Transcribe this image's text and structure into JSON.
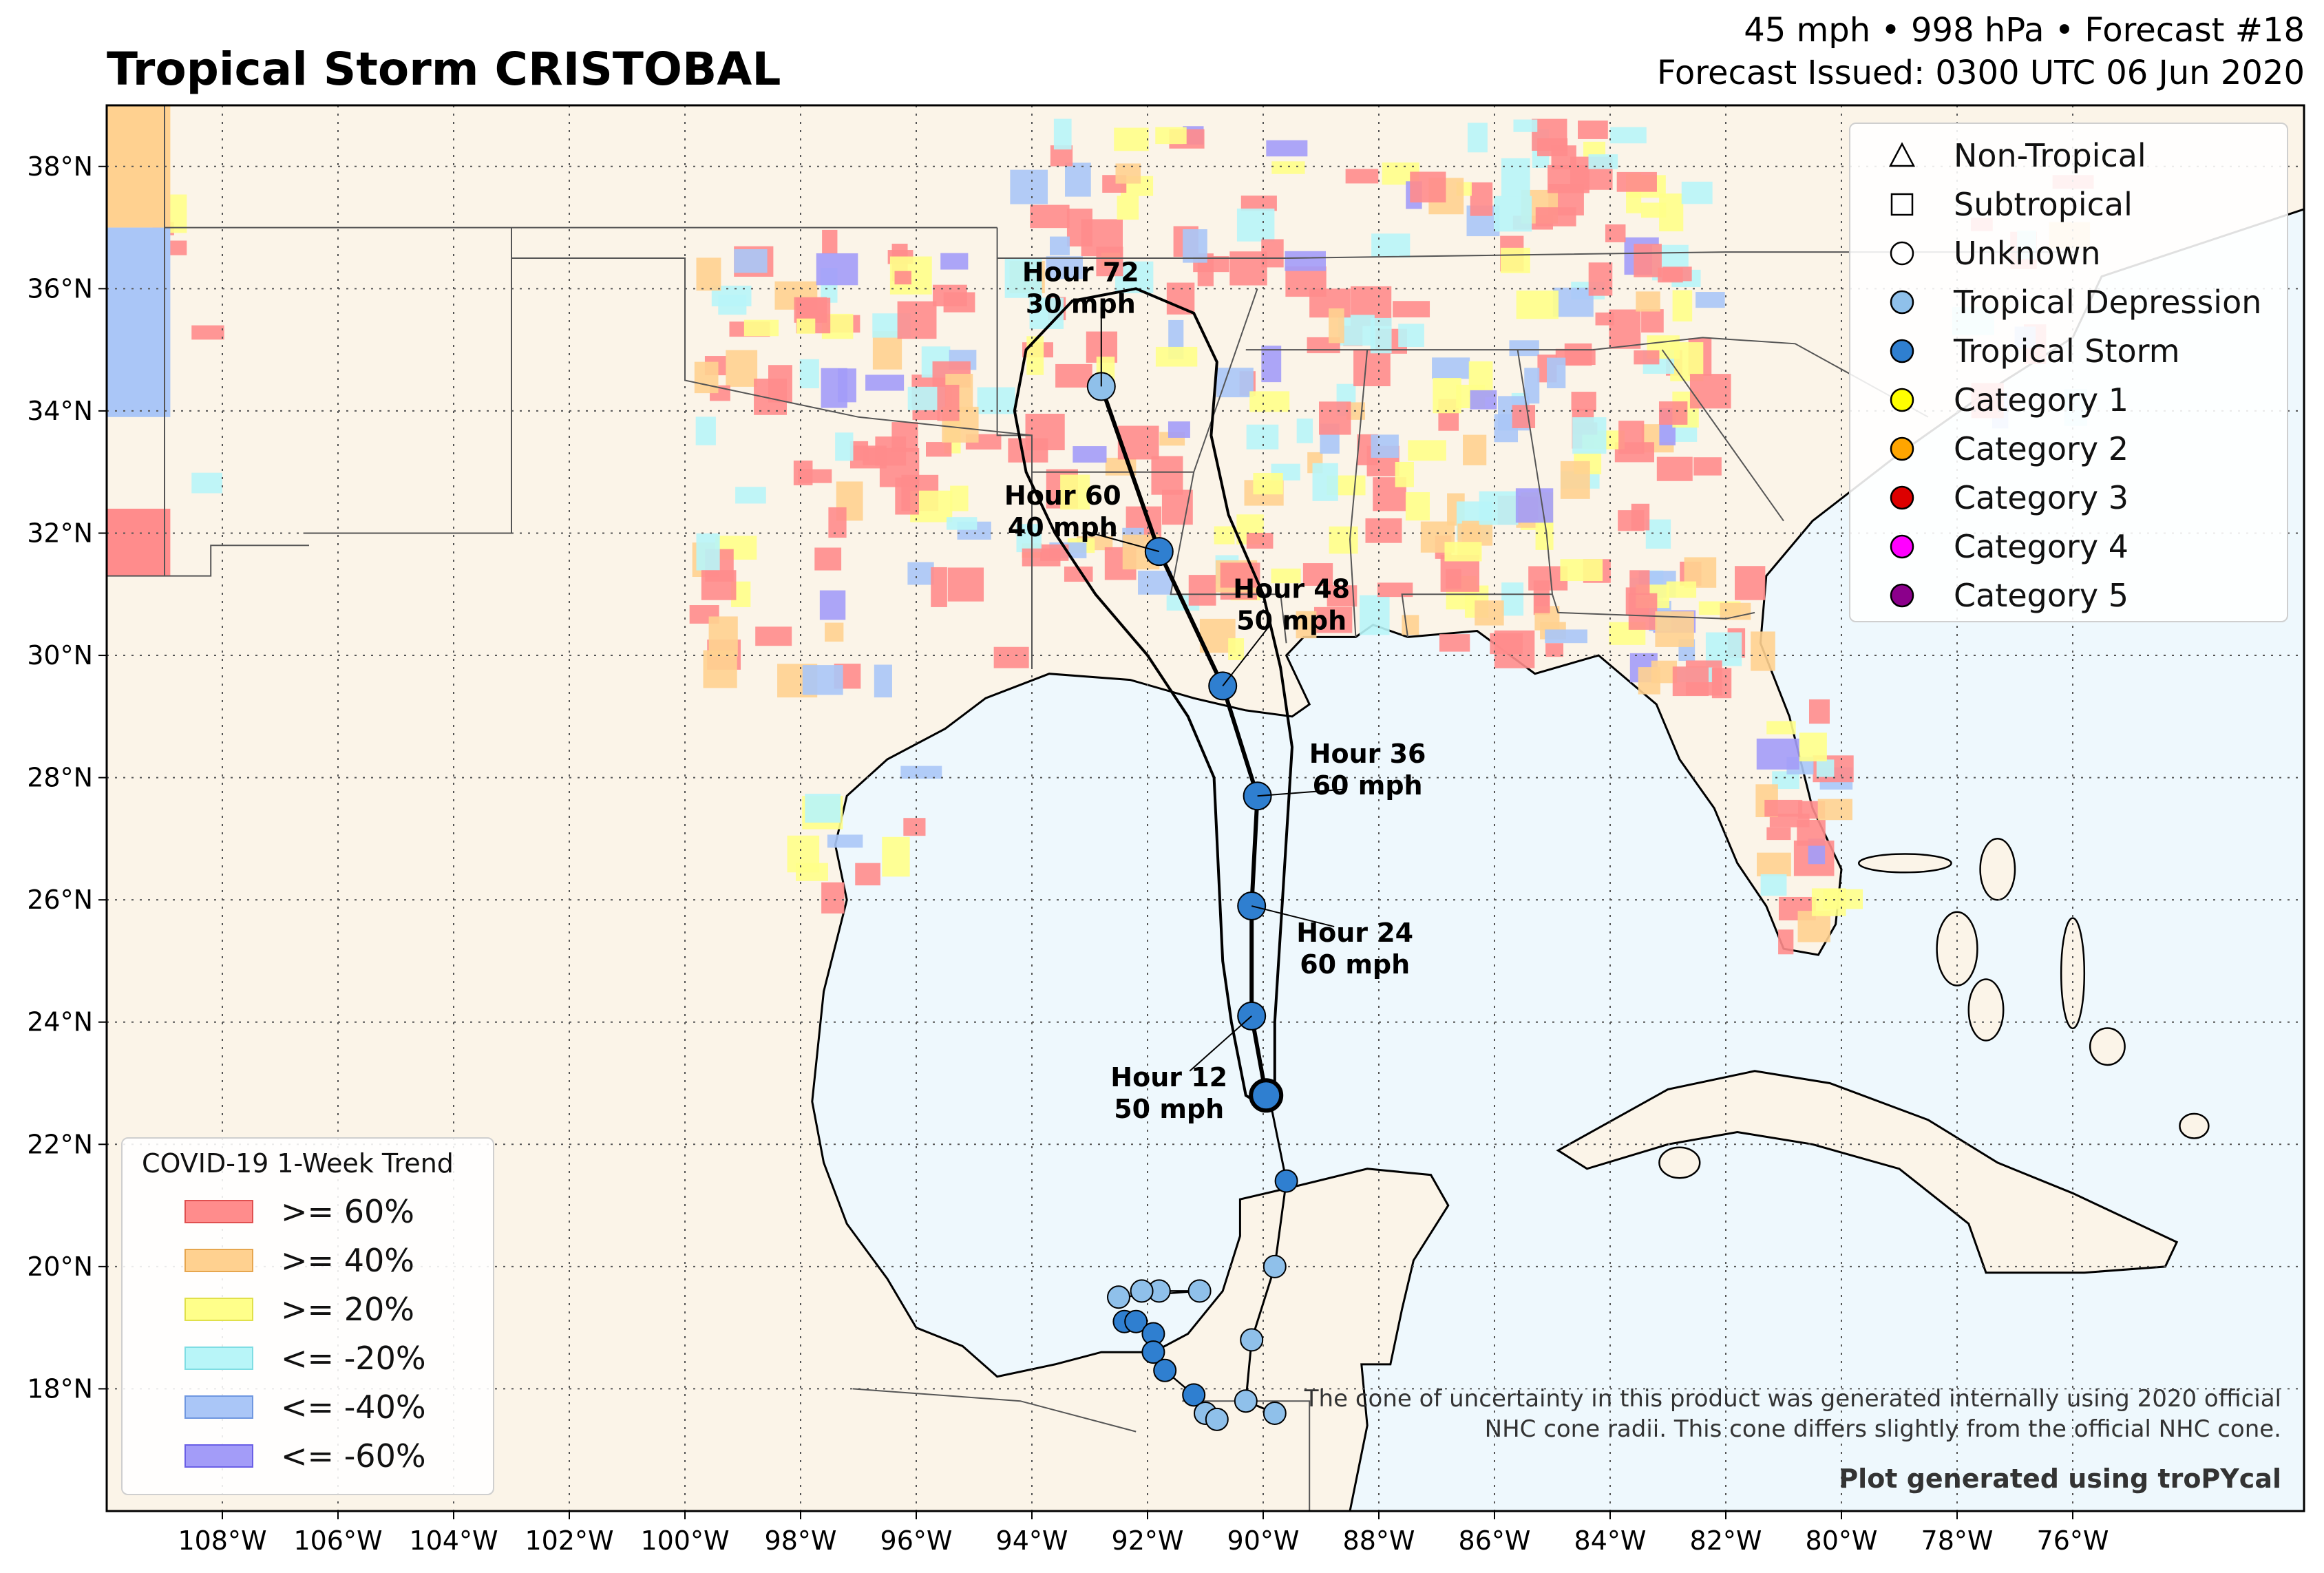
{
  "header": {
    "title": "Tropical Storm CRISTOBAL",
    "intensity_line": "45 mph • 998 hPa • Forecast #18",
    "issued_line": "Forecast Issued: 0300 UTC 06 Jun 2020"
  },
  "map": {
    "lon_range": [
      -110,
      -72
    ],
    "lat_range": [
      16,
      39
    ],
    "lon_ticks": [
      "108°W",
      "106°W",
      "104°W",
      "102°W",
      "100°W",
      "98°W",
      "96°W",
      "94°W",
      "92°W",
      "90°W",
      "88°W",
      "86°W",
      "84°W",
      "82°W",
      "80°W",
      "78°W",
      "76°W"
    ],
    "lat_ticks": [
      "18°N",
      "20°N",
      "22°N",
      "24°N",
      "26°N",
      "28°N",
      "30°N",
      "32°N",
      "34°N",
      "36°N",
      "38°N"
    ],
    "colors": {
      "land": "#fbf4e8",
      "ocean": "#eef8fd",
      "county_border": "#d9cfc2",
      "state_border": "#555555",
      "coast": "#000000",
      "grid": "#555555"
    }
  },
  "storm_legend": {
    "items": [
      {
        "label": "Non-Tropical",
        "symbol": "triangle",
        "color": "#ffffff"
      },
      {
        "label": "Subtropical",
        "symbol": "square",
        "color": "#ffffff"
      },
      {
        "label": "Unknown",
        "symbol": "circle",
        "color": "#ffffff"
      },
      {
        "label": "Tropical Depression",
        "symbol": "circle",
        "color": "#8fc0ea"
      },
      {
        "label": "Tropical Storm",
        "symbol": "circle",
        "color": "#2f7fd0"
      },
      {
        "label": "Category 1",
        "symbol": "circle",
        "color": "#ffff00"
      },
      {
        "label": "Category 2",
        "symbol": "circle",
        "color": "#ffa500"
      },
      {
        "label": "Category 3",
        "symbol": "circle",
        "color": "#dd0000"
      },
      {
        "label": "Category 4",
        "symbol": "circle",
        "color": "#ff00ff"
      },
      {
        "label": "Category 5",
        "symbol": "circle",
        "color": "#8b008b"
      }
    ]
  },
  "covid_legend": {
    "title": "COVID-19 1-Week Trend",
    "items": [
      {
        "label": ">= 60%",
        "color": "#ff8c8c",
        "edge": "#e05050"
      },
      {
        "label": ">= 40%",
        "color": "#ffd190",
        "edge": "#e6a64f"
      },
      {
        "label": ">= 20%",
        "color": "#ffff8a",
        "edge": "#e0e04a"
      },
      {
        "label": "<= -20%",
        "color": "#b8f5f8",
        "edge": "#7fdde3"
      },
      {
        "label": "<= -40%",
        "color": "#aac6f7",
        "edge": "#6f97e0"
      },
      {
        "label": "<= -60%",
        "color": "#a39cf8",
        "edge": "#6a5fe6"
      }
    ]
  },
  "past_track": [
    {
      "lon": -89.8,
      "lat": 17.6,
      "cat": "TD"
    },
    {
      "lon": -90.3,
      "lat": 17.8,
      "cat": "TD"
    },
    {
      "lon": -90.2,
      "lat": 18.8,
      "cat": "TD"
    },
    {
      "lon": -89.8,
      "lat": 20.0,
      "cat": "TD"
    },
    {
      "lon": -89.6,
      "lat": 21.4,
      "cat": "TS"
    },
    {
      "lon": -89.9,
      "lat": 22.8,
      "cat": "TS"
    }
  ],
  "early_track": [
    {
      "lon": -92.5,
      "lat": 19.5,
      "cat": "TD"
    },
    {
      "lon": -91.1,
      "lat": 19.6,
      "cat": "TD"
    },
    {
      "lon": -91.8,
      "lat": 19.6,
      "cat": "TD"
    },
    {
      "lon": -92.1,
      "lat": 19.6,
      "cat": "TD"
    },
    {
      "lon": -92.4,
      "lat": 19.1,
      "cat": "TS"
    },
    {
      "lon": -92.2,
      "lat": 19.1,
      "cat": "TS"
    },
    {
      "lon": -91.9,
      "lat": 18.9,
      "cat": "TS"
    },
    {
      "lon": -91.9,
      "lat": 18.6,
      "cat": "TS"
    },
    {
      "lon": -91.7,
      "lat": 18.3,
      "cat": "TS"
    },
    {
      "lon": -91.2,
      "lat": 17.9,
      "cat": "TS"
    },
    {
      "lon": -91.0,
      "lat": 17.6,
      "cat": "TD"
    },
    {
      "lon": -90.8,
      "lat": 17.5,
      "cat": "TD"
    }
  ],
  "forecast_points": [
    {
      "lon": -89.95,
      "lat": 22.8,
      "cat": "TS",
      "label1": "",
      "label2": ""
    },
    {
      "lon": -90.2,
      "lat": 24.1,
      "cat": "TS",
      "label1": "Hour 12",
      "label2": "50 mph"
    },
    {
      "lon": -90.2,
      "lat": 25.9,
      "cat": "TS",
      "label1": "Hour 24",
      "label2": "60 mph"
    },
    {
      "lon": -90.1,
      "lat": 27.7,
      "cat": "TS",
      "label1": "Hour 36",
      "label2": "60 mph"
    },
    {
      "lon": -90.7,
      "lat": 29.5,
      "cat": "TS",
      "label1": "Hour 48",
      "label2": "50 mph"
    },
    {
      "lon": -91.8,
      "lat": 31.7,
      "cat": "TS",
      "label1": "Hour 60",
      "label2": "40 mph"
    },
    {
      "lon": -92.8,
      "lat": 34.4,
      "cat": "TD",
      "label1": "Hour 72",
      "label2": "30 mph"
    }
  ],
  "cone": [
    [
      -90.3,
      22.8
    ],
    [
      -90.55,
      24.0
    ],
    [
      -90.7,
      25.0
    ],
    [
      -90.75,
      26.0
    ],
    [
      -90.8,
      27.0
    ],
    [
      -90.85,
      28.0
    ],
    [
      -91.3,
      29.0
    ],
    [
      -92.0,
      30.0
    ],
    [
      -92.9,
      31.0
    ],
    [
      -93.6,
      32.0
    ],
    [
      -94.1,
      33.0
    ],
    [
      -94.3,
      34.0
    ],
    [
      -94.1,
      35.0
    ],
    [
      -93.3,
      35.8
    ],
    [
      -92.2,
      36.0
    ],
    [
      -91.2,
      35.6
    ],
    [
      -90.8,
      34.8
    ],
    [
      -90.9,
      33.6
    ],
    [
      -90.6,
      32.3
    ],
    [
      -90.0,
      31.0
    ],
    [
      -89.7,
      29.8
    ],
    [
      -89.5,
      28.5
    ],
    [
      -89.6,
      27.0
    ],
    [
      -89.7,
      25.5
    ],
    [
      -89.8,
      24.0
    ],
    [
      -89.8,
      23.0
    ],
    [
      -89.95,
      22.6
    ],
    [
      -90.3,
      22.8
    ]
  ],
  "note": {
    "line1": "The cone of uncertainty in this product was generated internally using 2020 official",
    "line2": "NHC cone radii. This cone differs slightly from the official NHC cone.",
    "credit": "Plot generated using troPYcal"
  }
}
